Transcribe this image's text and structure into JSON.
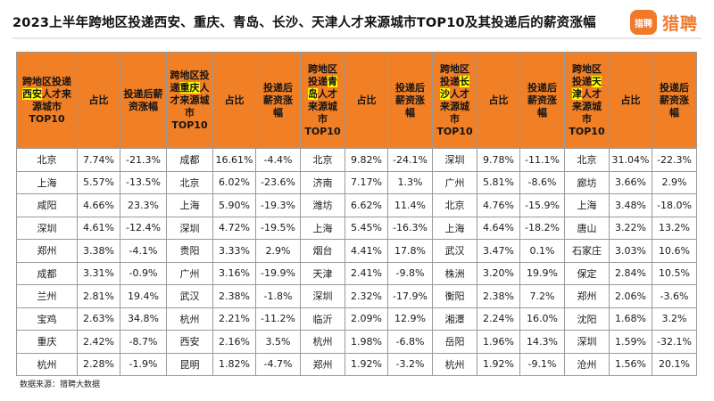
{
  "title": "2023上半年跨地区投递西安、重庆、青岛、长沙、天津人才来源城市TOP10及其投递后的薪资涨幅",
  "logo": {
    "badge": "猎聘",
    "text": "猎聘"
  },
  "source": "数据来源：猎聘大数据",
  "colors": {
    "header_bg": "#f07f26",
    "highlight": "#ffff00",
    "logo": "#ef7b2e"
  },
  "headers": [
    {
      "pre": "跨地区投递",
      "hl": "西安",
      "post": "人才来源城市TOP10"
    },
    {
      "text": "占比"
    },
    {
      "text": "投递后薪资涨幅"
    },
    {
      "pre": "跨地区投递",
      "hl": "重庆",
      "post": "人才来源城市TOP10"
    },
    {
      "text": "占比"
    },
    {
      "text": "投递后薪资涨幅"
    },
    {
      "pre": "跨地区投递",
      "hl": "青岛",
      "post": "人才来源城市TOP10"
    },
    {
      "text": "占比"
    },
    {
      "text": "投递后薪资涨幅"
    },
    {
      "pre": "跨地区投递",
      "hl": "长沙",
      "post": "人才来源城市TOP10"
    },
    {
      "text": "占比"
    },
    {
      "text": "投递后薪资涨幅"
    },
    {
      "pre": "跨地区投递",
      "hl": "天津",
      "post": "人才来源城市TOP10"
    },
    {
      "text": "占比"
    },
    {
      "text": "投递后薪资涨幅"
    }
  ],
  "rows": [
    [
      "北京",
      "7.74%",
      "-21.3%",
      "成都",
      "16.61%",
      "-4.4%",
      "北京",
      "9.82%",
      "-24.1%",
      "深圳",
      "9.78%",
      "-11.1%",
      "北京",
      "31.04%",
      "-22.3%"
    ],
    [
      "上海",
      "5.57%",
      "-13.5%",
      "北京",
      "6.02%",
      "-23.6%",
      "济南",
      "7.17%",
      "1.3%",
      "广州",
      "5.81%",
      "-8.6%",
      "廊坊",
      "3.66%",
      "2.9%"
    ],
    [
      "咸阳",
      "4.66%",
      "23.3%",
      "上海",
      "5.90%",
      "-19.3%",
      "潍坊",
      "6.62%",
      "11.4%",
      "北京",
      "4.76%",
      "-15.9%",
      "上海",
      "3.48%",
      "-18.0%"
    ],
    [
      "深圳",
      "4.61%",
      "-12.4%",
      "深圳",
      "4.72%",
      "-19.5%",
      "上海",
      "5.45%",
      "-16.3%",
      "上海",
      "4.64%",
      "-18.2%",
      "唐山",
      "3.22%",
      "13.2%"
    ],
    [
      "郑州",
      "3.38%",
      "-4.1%",
      "贵阳",
      "3.33%",
      "2.9%",
      "烟台",
      "4.41%",
      "17.8%",
      "武汉",
      "3.47%",
      "0.1%",
      "石家庄",
      "3.03%",
      "10.6%"
    ],
    [
      "成都",
      "3.31%",
      "-0.9%",
      "广州",
      "3.16%",
      "-19.9%",
      "天津",
      "2.41%",
      "-9.8%",
      "株洲",
      "3.20%",
      "19.9%",
      "保定",
      "2.84%",
      "10.5%"
    ],
    [
      "兰州",
      "2.81%",
      "19.4%",
      "武汉",
      "2.38%",
      "-1.8%",
      "深圳",
      "2.32%",
      "-17.9%",
      "衡阳",
      "2.38%",
      "7.2%",
      "郑州",
      "2.06%",
      "-3.6%"
    ],
    [
      "宝鸡",
      "2.63%",
      "34.8%",
      "杭州",
      "2.21%",
      "-11.2%",
      "临沂",
      "2.09%",
      "12.9%",
      "湘潭",
      "2.24%",
      "16.0%",
      "沈阳",
      "1.68%",
      "3.2%"
    ],
    [
      "重庆",
      "2.42%",
      "-8.7%",
      "西安",
      "2.16%",
      "3.5%",
      "杭州",
      "1.98%",
      "-6.8%",
      "岳阳",
      "1.96%",
      "14.3%",
      "深圳",
      "1.59%",
      "-32.1%"
    ],
    [
      "杭州",
      "2.28%",
      "-1.9%",
      "昆明",
      "1.82%",
      "-4.7%",
      "郑州",
      "1.92%",
      "-3.2%",
      "杭州",
      "1.92%",
      "-9.1%",
      "沧州",
      "1.56%",
      "20.1%"
    ]
  ]
}
